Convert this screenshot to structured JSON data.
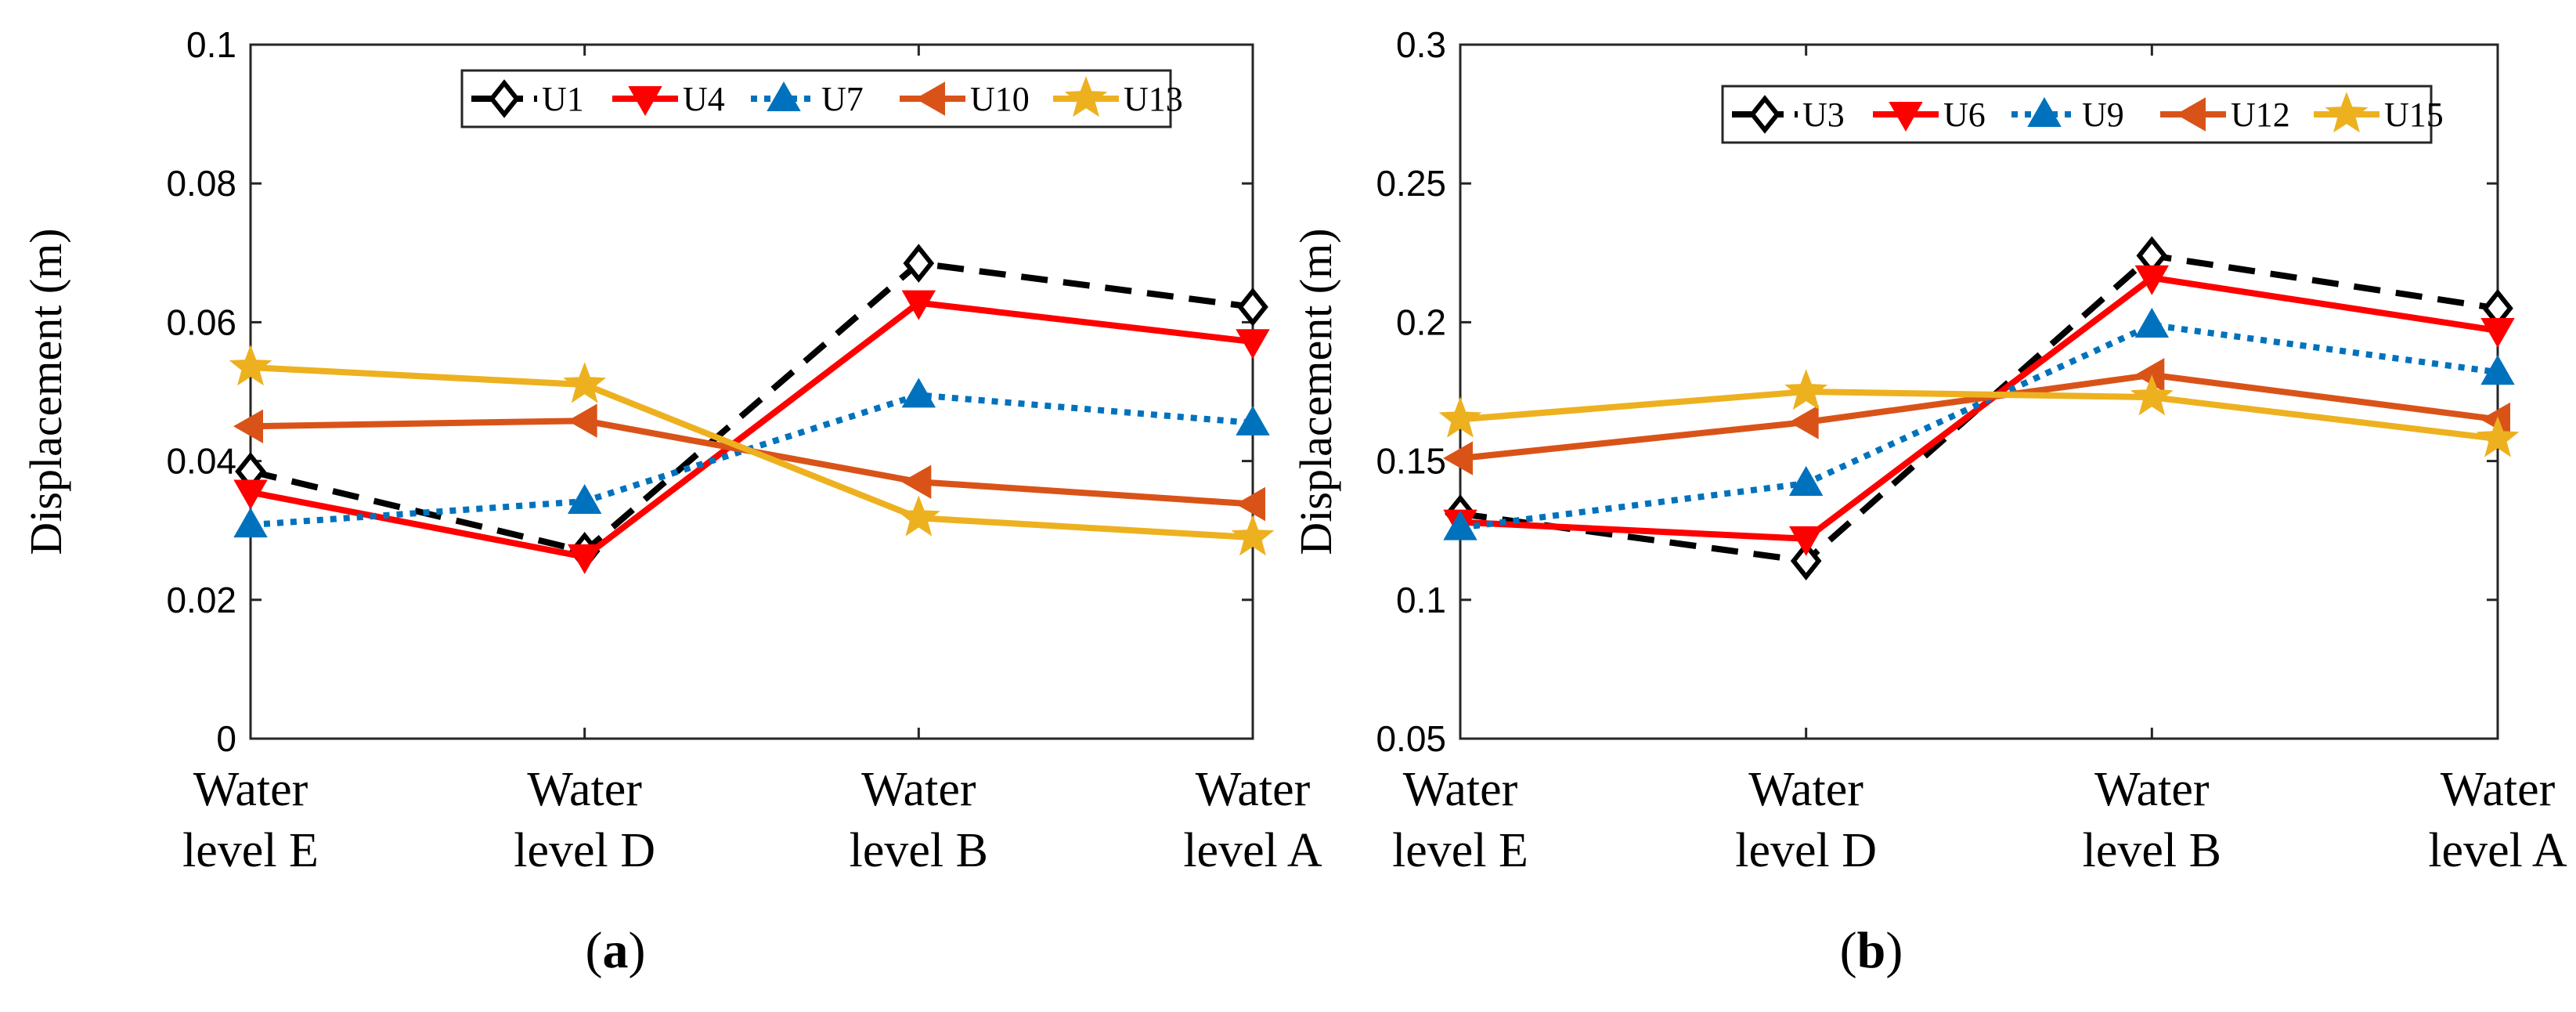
{
  "chart_data": [
    {
      "type": "line",
      "panel_label": "a",
      "title": "",
      "xlabel": "",
      "ylabel": "Displacement (m)",
      "categories": [
        [
          "Water",
          "level E"
        ],
        [
          "Water",
          "level D"
        ],
        [
          "Water",
          "level B"
        ],
        [
          "Water",
          "level A"
        ]
      ],
      "ylim": [
        0,
        0.1
      ],
      "yticks": [
        "0",
        "0.02",
        "0.04",
        "0.06",
        "0.08",
        "0.1"
      ],
      "legend_position": "top-right",
      "grid": false,
      "series": [
        {
          "name": "U1",
          "color": "#000000",
          "dash": "dashed",
          "marker": "diamond",
          "values": [
            0.0385,
            0.027,
            0.0685,
            0.0622
          ]
        },
        {
          "name": "U4",
          "color": "#FF0000",
          "dash": "solid",
          "marker": "triangle-down",
          "values": [
            0.0355,
            0.0262,
            0.0628,
            0.0572
          ]
        },
        {
          "name": "U7",
          "color": "#0072BD",
          "dash": "dotted",
          "marker": "triangle-up",
          "values": [
            0.0308,
            0.0342,
            0.0495,
            0.0455
          ]
        },
        {
          "name": "U10",
          "color": "#D95319",
          "dash": "solid",
          "marker": "triangle-left",
          "values": [
            0.045,
            0.0458,
            0.037,
            0.0338
          ]
        },
        {
          "name": "U13",
          "color": "#EDB120",
          "dash": "solid",
          "marker": "star",
          "values": [
            0.0535,
            0.051,
            0.0318,
            0.029
          ]
        }
      ]
    },
    {
      "type": "line",
      "panel_label": "b",
      "title": "",
      "xlabel": "",
      "ylabel": "Displacement (m)",
      "categories": [
        [
          "Water",
          "level E"
        ],
        [
          "Water",
          "level D"
        ],
        [
          "Water",
          "level B"
        ],
        [
          "Water",
          "level A"
        ]
      ],
      "ylim": [
        0.05,
        0.3
      ],
      "yticks": [
        "0.05",
        "0.1",
        "0.15",
        "0.2",
        "0.25",
        "0.3"
      ],
      "legend_position": "top-right",
      "grid": false,
      "series": [
        {
          "name": "U3",
          "color": "#000000",
          "dash": "dashed",
          "marker": "diamond",
          "values": [
            0.131,
            0.114,
            0.224,
            0.205
          ]
        },
        {
          "name": "U6",
          "color": "#FF0000",
          "dash": "solid",
          "marker": "triangle-down",
          "values": [
            0.128,
            0.122,
            0.216,
            0.197
          ]
        },
        {
          "name": "U9",
          "color": "#0072BD",
          "dash": "dotted",
          "marker": "triangle-up",
          "values": [
            0.126,
            0.142,
            0.199,
            0.182
          ]
        },
        {
          "name": "U12",
          "color": "#D95319",
          "dash": "solid",
          "marker": "triangle-left",
          "values": [
            0.151,
            0.164,
            0.181,
            0.165
          ]
        },
        {
          "name": "U15",
          "color": "#EDB120",
          "dash": "solid",
          "marker": "star",
          "values": [
            0.165,
            0.175,
            0.173,
            0.158
          ]
        }
      ]
    }
  ]
}
